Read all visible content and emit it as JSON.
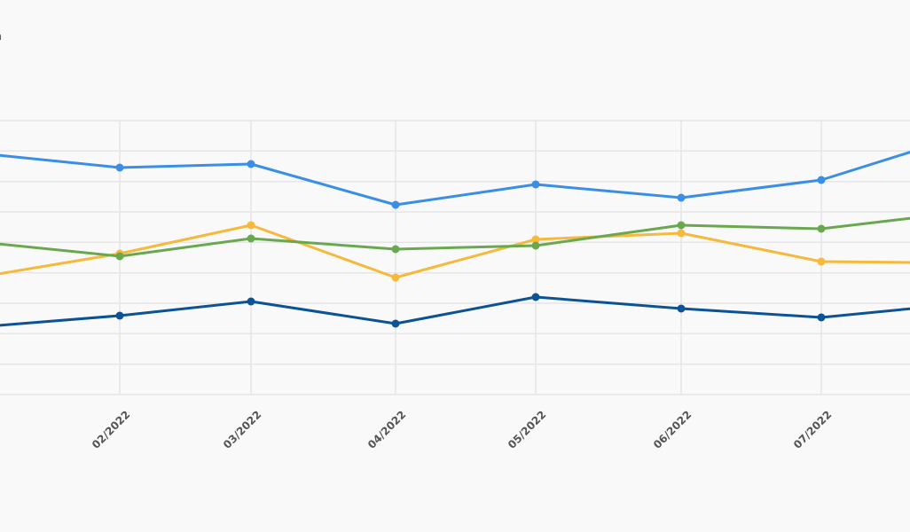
{
  "legend_fragment": "a",
  "chart_data": {
    "type": "line",
    "title": "",
    "xlabel": "",
    "ylabel": "",
    "categories": [
      "02/2022",
      "03/2022",
      "04/2022",
      "05/2022",
      "06/2022",
      "07/2022"
    ],
    "grid": true,
    "y_gridline_count": 10,
    "markers": true,
    "series": [
      {
        "color": "#3a8ee6",
        "edge_left": 175,
        "values": [
          189,
          185,
          231,
          208,
          223,
          203
        ],
        "edge_right": 171
      },
      {
        "color": "#f6b93b",
        "edge_left": 309,
        "values": [
          286,
          254,
          313,
          270,
          263,
          295
        ],
        "edge_right": 296
      },
      {
        "color": "#6aa84f",
        "edge_left": 275,
        "values": [
          289,
          269,
          281,
          277,
          254,
          258
        ],
        "edge_right": 246
      },
      {
        "color": "#0b5394",
        "edge_left": 367,
        "values": [
          356,
          340,
          365,
          335,
          348,
          358
        ],
        "edge_right": 348
      }
    ]
  }
}
